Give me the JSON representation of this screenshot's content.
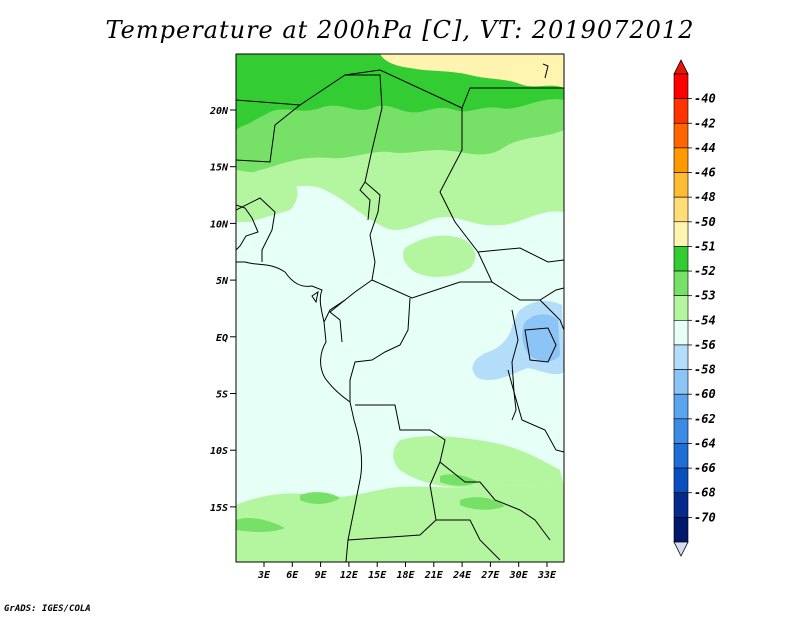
{
  "title": "Temperature at 200hPa [C], VT: 2019072012",
  "credit": "GrADS: IGES/COLA",
  "map": {
    "lat_labels": [
      "20N",
      "15N",
      "10N",
      "5N",
      "EQ",
      "5S",
      "10S",
      "15S"
    ],
    "lon_labels": [
      "3E",
      "6E",
      "9E",
      "12E",
      "15E",
      "18E",
      "21E",
      "24E",
      "27E",
      "30E",
      "33E"
    ]
  },
  "legend": {
    "labels": [
      "-40",
      "-42",
      "-44",
      "-46",
      "-48",
      "-50",
      "-51",
      "-52",
      "-53",
      "-54",
      "-56",
      "-58",
      "-60",
      "-62",
      "-64",
      "-66",
      "-68",
      "-70"
    ],
    "colors": [
      "#ff0000",
      "#ff3300",
      "#ff6600",
      "#ff9900",
      "#ffbb33",
      "#ffdd77",
      "#fff5b0",
      "#33cc33",
      "#77e066",
      "#b4f5a0",
      "#e6fff7",
      "#b4ddfa",
      "#8cc4f5",
      "#5aa5ee",
      "#3c8ce6",
      "#1e6ed7",
      "#0a4fc0",
      "#062a8c",
      "#00186a"
    ],
    "top_arrow_color": "#e61400",
    "bottom_arrow_color": "#d7dcf5"
  },
  "palette": {
    "pale_cyan": "#e6fff7",
    "light_green": "#b4f5a0",
    "mid_green": "#77e066",
    "dark_green": "#33cc33",
    "pale_yellow": "#fff5b0",
    "light_blue": "#b4ddfa",
    "blue": "#8cc4f5"
  }
}
